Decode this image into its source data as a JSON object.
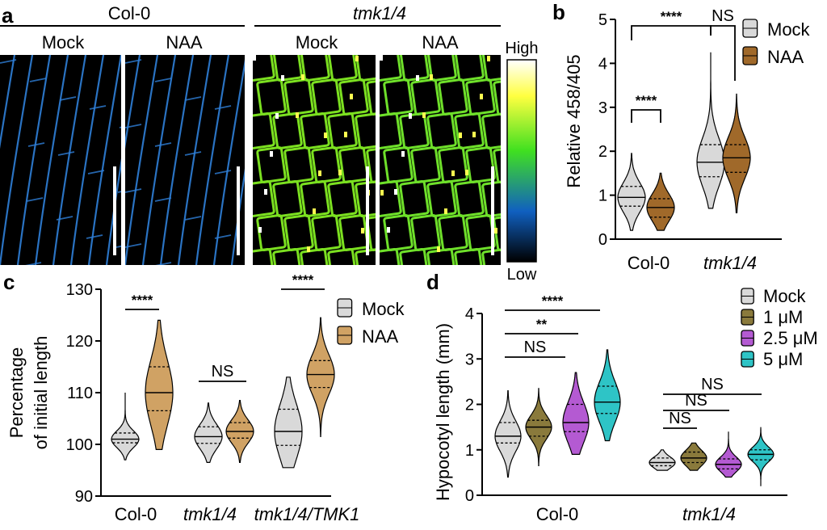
{
  "panel_a": {
    "label": "a",
    "group_labels": [
      "Col-0",
      "tmk1/4"
    ],
    "condition_labels": [
      "Mock",
      "NAA",
      "Mock",
      "NAA"
    ],
    "colorbar": {
      "high": "High",
      "low": "Low"
    },
    "image_tints": [
      "#2f7fd8",
      "#2f7fd8",
      "#7be020",
      "#6ee02a"
    ]
  },
  "chart_data": [
    {
      "panel": "b",
      "type": "violin",
      "ylabel": "Relative 458/405",
      "ylim": [
        0,
        5
      ],
      "yticks": [
        0,
        1,
        2,
        3,
        4,
        5
      ],
      "categories": [
        "Col-0",
        "tmk1/4"
      ],
      "series": [
        {
          "name": "Mock",
          "color": "#d9d9d9",
          "median": [
            0.95,
            1.75
          ],
          "q1": [
            0.75,
            1.42
          ],
          "q3": [
            1.2,
            2.15
          ],
          "min": [
            0.2,
            0.7
          ],
          "max": [
            1.95,
            4.25
          ]
        },
        {
          "name": "NAA",
          "color": "#a0692a",
          "median": [
            0.72,
            1.85
          ],
          "q1": [
            0.5,
            1.52
          ],
          "q3": [
            0.92,
            2.15
          ],
          "min": [
            0.2,
            0.6
          ],
          "max": [
            1.5,
            3.3
          ]
        }
      ],
      "significance": [
        {
          "label": "****"
        },
        {
          "label": "****"
        },
        {
          "label": "NS"
        }
      ]
    },
    {
      "panel": "c",
      "type": "violin",
      "ylabel_lines": [
        "Percentage",
        "of initial length"
      ],
      "ylim": [
        90,
        130
      ],
      "yticks": [
        90,
        100,
        110,
        120,
        130
      ],
      "categories": [
        "Col-0",
        "tmk1/4",
        "tmk1/4/TMK1"
      ],
      "series": [
        {
          "name": "Mock",
          "color": "#d9d9d9",
          "median": [
            101,
            101.5,
            102.5
          ],
          "q1": [
            100.3,
            100.2,
            99.8
          ],
          "q3": [
            102.2,
            103.4,
            106.8
          ],
          "min": [
            97,
            96.5,
            95.5
          ],
          "max": [
            110,
            108,
            113
          ]
        },
        {
          "name": "NAA",
          "color": "#d0a264",
          "median": [
            110,
            102.5,
            113.5
          ],
          "q1": [
            106.5,
            101.2,
            111
          ],
          "q3": [
            115,
            104.2,
            116.2
          ],
          "min": [
            99,
            96.5,
            101.5
          ],
          "max": [
            124,
            108.5,
            124.5
          ]
        }
      ],
      "significance": [
        {
          "label": "****"
        },
        {
          "label": "NS"
        },
        {
          "label": "****"
        }
      ]
    },
    {
      "panel": "d",
      "type": "violin",
      "ylabel": "Hypocotyl length (mm)",
      "ylim": [
        0,
        4
      ],
      "yticks": [
        0,
        1,
        2,
        3,
        4
      ],
      "categories": [
        "Col-0",
        "tmk1/4"
      ],
      "series": [
        {
          "name": "Mock",
          "color": "#d9d9d9",
          "median": [
            1.3,
            0.72
          ],
          "q1": [
            1.15,
            0.65
          ],
          "q3": [
            1.6,
            0.82
          ],
          "min": [
            0.4,
            0.55
          ],
          "max": [
            2.3,
            1.0
          ]
        },
        {
          "name": "1 μM",
          "color": "#8a7a3c",
          "median": [
            1.5,
            0.82
          ],
          "q1": [
            1.3,
            0.72
          ],
          "q3": [
            1.65,
            0.95
          ],
          "min": [
            0.65,
            0.55
          ],
          "max": [
            2.35,
            1.15
          ]
        },
        {
          "name": "2.5 μM",
          "color": "#b45ad2",
          "median": [
            1.6,
            0.68
          ],
          "q1": [
            1.4,
            0.58
          ],
          "q3": [
            2.0,
            0.8
          ],
          "min": [
            0.9,
            0.4
          ],
          "max": [
            2.7,
            1.4
          ]
        },
        {
          "name": "5 μM",
          "color": "#2ec4c6",
          "median": [
            2.05,
            0.9
          ],
          "q1": [
            1.8,
            0.78
          ],
          "q3": [
            2.4,
            1.0
          ],
          "min": [
            1.2,
            0.2
          ],
          "max": [
            3.2,
            1.5
          ]
        }
      ],
      "significance": [
        {
          "label": "****"
        },
        {
          "label": "**"
        },
        {
          "label": "NS"
        },
        {
          "label": "NS"
        },
        {
          "label": "NS"
        },
        {
          "label": "NS"
        }
      ]
    }
  ]
}
